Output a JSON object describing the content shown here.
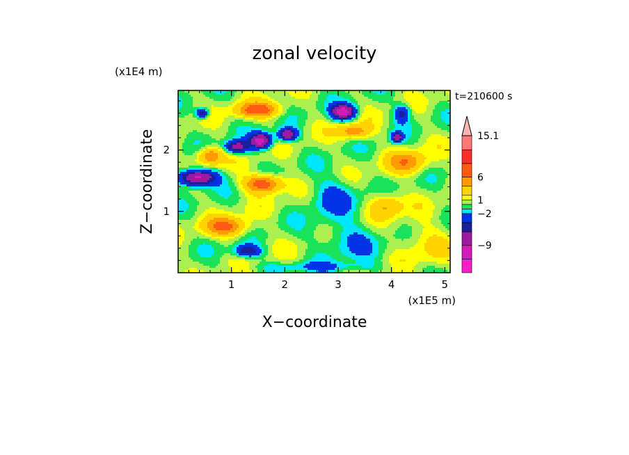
{
  "chart_data": {
    "type": "heatmap",
    "title": "zonal velocity",
    "xlabel": "X−coordinate",
    "ylabel": "Z−coordinate",
    "x_unit": "(x1E5 m)",
    "y_unit": "(x1E4 m)",
    "time_label": "t=210600 s",
    "xlim": [
      0,
      5.1
    ],
    "ylim": [
      0,
      2.97
    ],
    "x_ticks": [
      1,
      2,
      3,
      4,
      5
    ],
    "x_tick_labels": [
      "1",
      "2",
      "3",
      "4",
      "5"
    ],
    "y_ticks": [
      1,
      2
    ],
    "y_tick_labels": [
      "1",
      "2"
    ],
    "colorbar": {
      "levels": [
        -15,
        -12,
        -9,
        -6,
        -4,
        -2,
        -1,
        0,
        1,
        2,
        4,
        6,
        9,
        12,
        15.1
      ],
      "colors": [
        "#ff1ec8",
        "#d21bb9",
        "#9c1a9e",
        "#1a1f9c",
        "#0032e6",
        "#00e6ff",
        "#19e35a",
        "#aaf050",
        "#ffff00",
        "#ffd200",
        "#ff9b00",
        "#ff5a14",
        "#ff2d2d",
        "#ff7878",
        "#ffb4b4"
      ],
      "tick_labels": [
        "15.1",
        "6",
        "1",
        "−2",
        "−9"
      ],
      "tick_values": [
        15.1,
        6,
        1,
        -2,
        -9
      ],
      "extend": "max"
    },
    "field_features": [
      {
        "x": 0.35,
        "z": 1.55,
        "u": -11,
        "sx": 0.35,
        "sz": 0.13
      },
      {
        "x": 0.45,
        "z": 2.6,
        "u": -7,
        "sx": 0.12,
        "sz": 0.08
      },
      {
        "x": 1.1,
        "z": 2.05,
        "u": -8,
        "sx": 0.22,
        "sz": 0.1
      },
      {
        "x": 1.55,
        "z": 2.15,
        "u": -11,
        "sx": 0.2,
        "sz": 0.12
      },
      {
        "x": 2.05,
        "z": 2.25,
        "u": -9,
        "sx": 0.18,
        "sz": 0.1
      },
      {
        "x": 3.1,
        "z": 2.62,
        "u": -11,
        "sx": 0.22,
        "sz": 0.12
      },
      {
        "x": 4.1,
        "z": 2.2,
        "u": -8,
        "sx": 0.1,
        "sz": 0.08
      },
      {
        "x": 4.2,
        "z": 2.6,
        "u": -5,
        "sx": 0.15,
        "sz": 0.15
      },
      {
        "x": 1.3,
        "z": 0.35,
        "u": -6,
        "sx": 0.25,
        "sz": 0.1
      },
      {
        "x": 0.6,
        "z": 1.9,
        "u": 6,
        "sx": 0.22,
        "sz": 0.14
      },
      {
        "x": 1.6,
        "z": 1.45,
        "u": 8,
        "sx": 0.35,
        "sz": 0.14
      },
      {
        "x": 1.5,
        "z": 2.65,
        "u": 7,
        "sx": 0.4,
        "sz": 0.12
      },
      {
        "x": 0.9,
        "z": 0.75,
        "u": 6,
        "sx": 0.4,
        "sz": 0.15
      },
      {
        "x": 3.3,
        "z": 2.3,
        "u": 5,
        "sx": 0.3,
        "sz": 0.12
      },
      {
        "x": 4.3,
        "z": 1.8,
        "u": 5,
        "sx": 0.35,
        "sz": 0.18
      },
      {
        "x": 3.9,
        "z": 1.1,
        "u": 4,
        "sx": 0.3,
        "sz": 0.2
      },
      {
        "x": 2.9,
        "z": 1.25,
        "u": -3,
        "sx": 0.45,
        "sz": 0.3
      },
      {
        "x": 3.2,
        "z": 0.55,
        "u": -2.5,
        "sx": 0.6,
        "sz": 0.3
      },
      {
        "x": 4.6,
        "z": 0.5,
        "u": 2,
        "sx": 0.5,
        "sz": 0.3
      },
      {
        "x": 2.6,
        "z": 0.1,
        "u": -2,
        "sx": 1.2,
        "sz": 0.08
      }
    ],
    "grid": false
  }
}
